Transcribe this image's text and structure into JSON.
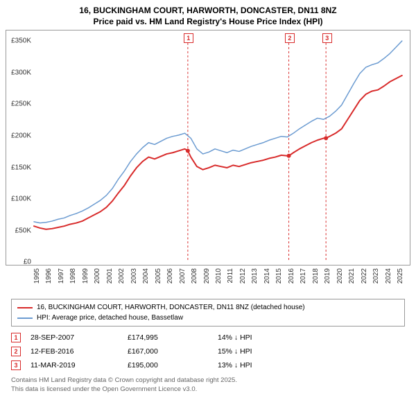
{
  "title_line1": "16, BUCKINGHAM COURT, HARWORTH, DONCASTER, DN11 8NZ",
  "title_line2": "Price paid vs. HM Land Registry's House Price Index (HPI)",
  "chart": {
    "type": "line",
    "background_color": "#ffffff",
    "border_color": "#999999",
    "x": {
      "years": [
        1995,
        1996,
        1997,
        1998,
        1999,
        2000,
        2001,
        2002,
        2003,
        2004,
        2005,
        2006,
        2007,
        2008,
        2009,
        2010,
        2011,
        2012,
        2013,
        2014,
        2015,
        2016,
        2017,
        2018,
        2019,
        2020,
        2021,
        2022,
        2023,
        2024,
        2025
      ],
      "min": 1995,
      "max": 2025.8
    },
    "y": {
      "min": 0,
      "max": 360000,
      "ticks": [
        0,
        50000,
        100000,
        150000,
        200000,
        250000,
        300000,
        350000
      ],
      "tick_labels": [
        "£0",
        "£50K",
        "£100K",
        "£150K",
        "£200K",
        "£250K",
        "£300K",
        "£350K"
      ],
      "label_fontsize": 10
    },
    "series": [
      {
        "name": "price_paid",
        "label": "16, BUCKINGHAM COURT, HARWORTH, DONCASTER, DN11 8NZ (detached house)",
        "color": "#d82a2a",
        "width": 2,
        "data": [
          [
            1995,
            55000
          ],
          [
            1995.5,
            52000
          ],
          [
            1996,
            50000
          ],
          [
            1996.5,
            51000
          ],
          [
            1997,
            53000
          ],
          [
            1997.5,
            55000
          ],
          [
            1998,
            58000
          ],
          [
            1998.5,
            60000
          ],
          [
            1999,
            63000
          ],
          [
            1999.5,
            68000
          ],
          [
            2000,
            73000
          ],
          [
            2000.5,
            78000
          ],
          [
            2001,
            85000
          ],
          [
            2001.5,
            95000
          ],
          [
            2002,
            108000
          ],
          [
            2002.5,
            120000
          ],
          [
            2003,
            135000
          ],
          [
            2003.5,
            148000
          ],
          [
            2004,
            158000
          ],
          [
            2004.5,
            165000
          ],
          [
            2005,
            162000
          ],
          [
            2005.5,
            166000
          ],
          [
            2006,
            170000
          ],
          [
            2006.5,
            172000
          ],
          [
            2007,
            175000
          ],
          [
            2007.5,
            178000
          ],
          [
            2007.75,
            174995
          ],
          [
            2008,
            165000
          ],
          [
            2008.5,
            150000
          ],
          [
            2009,
            145000
          ],
          [
            2009.5,
            148000
          ],
          [
            2010,
            152000
          ],
          [
            2010.5,
            150000
          ],
          [
            2011,
            148000
          ],
          [
            2011.5,
            152000
          ],
          [
            2012,
            150000
          ],
          [
            2012.5,
            153000
          ],
          [
            2013,
            156000
          ],
          [
            2013.5,
            158000
          ],
          [
            2014,
            160000
          ],
          [
            2014.5,
            163000
          ],
          [
            2015,
            165000
          ],
          [
            2015.5,
            168000
          ],
          [
            2016,
            167000
          ],
          [
            2016.12,
            167000
          ],
          [
            2016.5,
            172000
          ],
          [
            2017,
            178000
          ],
          [
            2017.5,
            183000
          ],
          [
            2018,
            188000
          ],
          [
            2018.5,
            192000
          ],
          [
            2019,
            195000
          ],
          [
            2019.2,
            195000
          ],
          [
            2019.5,
            198000
          ],
          [
            2020,
            203000
          ],
          [
            2020.5,
            210000
          ],
          [
            2021,
            225000
          ],
          [
            2021.5,
            240000
          ],
          [
            2022,
            255000
          ],
          [
            2022.5,
            265000
          ],
          [
            2023,
            270000
          ],
          [
            2023.5,
            272000
          ],
          [
            2024,
            278000
          ],
          [
            2024.5,
            285000
          ],
          [
            2025,
            290000
          ],
          [
            2025.5,
            295000
          ]
        ]
      },
      {
        "name": "hpi",
        "label": "HPI: Average price, detached house, Bassetlaw",
        "color": "#6b9bd1",
        "width": 1.5,
        "data": [
          [
            1995,
            62000
          ],
          [
            1995.5,
            60000
          ],
          [
            1996,
            61000
          ],
          [
            1996.5,
            63000
          ],
          [
            1997,
            66000
          ],
          [
            1997.5,
            68000
          ],
          [
            1998,
            72000
          ],
          [
            1998.5,
            75000
          ],
          [
            1999,
            79000
          ],
          [
            1999.5,
            84000
          ],
          [
            2000,
            90000
          ],
          [
            2000.5,
            96000
          ],
          [
            2001,
            104000
          ],
          [
            2001.5,
            115000
          ],
          [
            2002,
            130000
          ],
          [
            2002.5,
            143000
          ],
          [
            2003,
            158000
          ],
          [
            2003.5,
            170000
          ],
          [
            2004,
            180000
          ],
          [
            2004.5,
            188000
          ],
          [
            2005,
            185000
          ],
          [
            2005.5,
            190000
          ],
          [
            2006,
            195000
          ],
          [
            2006.5,
            198000
          ],
          [
            2007,
            200000
          ],
          [
            2007.5,
            203000
          ],
          [
            2008,
            195000
          ],
          [
            2008.5,
            178000
          ],
          [
            2009,
            170000
          ],
          [
            2009.5,
            173000
          ],
          [
            2010,
            178000
          ],
          [
            2010.5,
            175000
          ],
          [
            2011,
            172000
          ],
          [
            2011.5,
            176000
          ],
          [
            2012,
            174000
          ],
          [
            2012.5,
            178000
          ],
          [
            2013,
            182000
          ],
          [
            2013.5,
            185000
          ],
          [
            2014,
            188000
          ],
          [
            2014.5,
            192000
          ],
          [
            2015,
            195000
          ],
          [
            2015.5,
            198000
          ],
          [
            2016,
            197000
          ],
          [
            2016.5,
            203000
          ],
          [
            2017,
            210000
          ],
          [
            2017.5,
            216000
          ],
          [
            2018,
            222000
          ],
          [
            2018.5,
            227000
          ],
          [
            2019,
            225000
          ],
          [
            2019.5,
            230000
          ],
          [
            2020,
            238000
          ],
          [
            2020.5,
            248000
          ],
          [
            2021,
            265000
          ],
          [
            2021.5,
            282000
          ],
          [
            2022,
            298000
          ],
          [
            2022.5,
            308000
          ],
          [
            2023,
            312000
          ],
          [
            2023.5,
            315000
          ],
          [
            2024,
            322000
          ],
          [
            2024.5,
            330000
          ],
          [
            2025,
            340000
          ],
          [
            2025.5,
            350000
          ]
        ]
      }
    ],
    "callout_lines": [
      {
        "id": "1",
        "x": 2007.75,
        "color": "#d82a2a",
        "dash": "3,3"
      },
      {
        "id": "2",
        "x": 2016.12,
        "color": "#d82a2a",
        "dash": "3,3"
      },
      {
        "id": "3",
        "x": 2019.2,
        "color": "#d82a2a",
        "dash": "3,3"
      }
    ],
    "callout_markers_on_series": "price_paid",
    "callout_marker_color": "#d82a2a",
    "callout_marker_radius": 3
  },
  "legend": {
    "rows": [
      {
        "color": "#d82a2a",
        "label": "16, BUCKINGHAM COURT, HARWORTH, DONCASTER, DN11 8NZ (detached house)"
      },
      {
        "color": "#6b9bd1",
        "label": "HPI: Average price, detached house, Bassetlaw"
      }
    ]
  },
  "callouts": [
    {
      "id": "1",
      "date": "28-SEP-2007",
      "price": "£174,995",
      "diff": "14% ↓ HPI"
    },
    {
      "id": "2",
      "date": "12-FEB-2016",
      "price": "£167,000",
      "diff": "15% ↓ HPI"
    },
    {
      "id": "3",
      "date": "11-MAR-2019",
      "price": "£195,000",
      "diff": "13% ↓ HPI"
    }
  ],
  "footer_line1": "Contains HM Land Registry data © Crown copyright and database right 2025.",
  "footer_line2": "This data is licensed under the Open Government Licence v3.0."
}
